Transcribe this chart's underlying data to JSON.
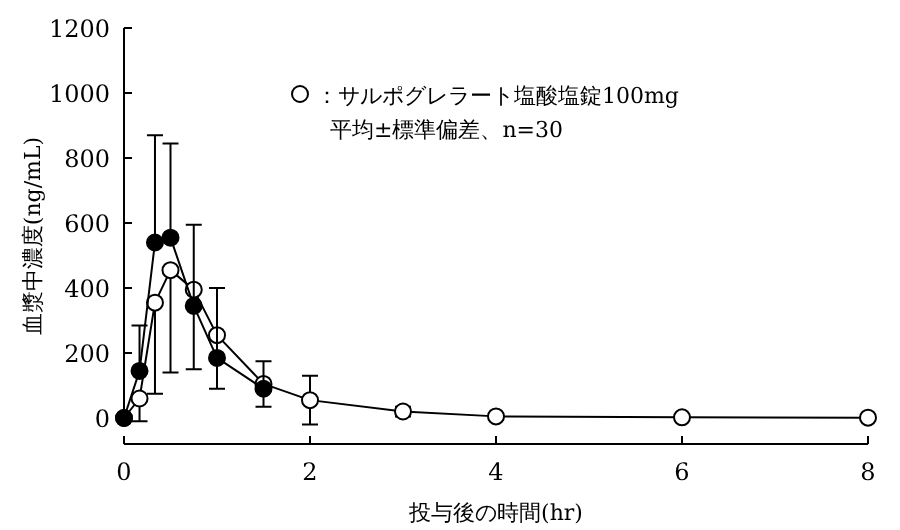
{
  "chart_data": {
    "type": "line",
    "xlabel": "投与後の時間(hr)",
    "ylabel": "血漿中濃度(ng/mL)",
    "xlim": [
      0,
      8
    ],
    "xticks": [
      0,
      2,
      4,
      6,
      8
    ],
    "ylim": [
      -80,
      1200
    ],
    "yticks": [
      0,
      200,
      400,
      600,
      800,
      1000,
      1200
    ],
    "marker": "circle",
    "legend": "top right",
    "grid": false,
    "annotations": [
      "平均±標準偏差、n=30"
    ],
    "series": [
      {
        "name": "：サルポグレラート塩酸塩錠100mg",
        "color": "#ffffff",
        "x": [
          0,
          0.167,
          0.333,
          0.5,
          0.75,
          1,
          1.5,
          2,
          3,
          4,
          6,
          8
        ],
        "values": [
          0,
          60,
          355,
          455,
          395,
          255,
          105,
          55,
          20,
          5,
          2,
          1
        ],
        "errors": [
          null,
          [
            -10,
            60
          ],
          [
            75,
            355
          ],
          [
            140,
            455
          ],
          [
            150,
            395
          ],
          [
            90,
            255
          ],
          [
            35,
            105
          ],
          [
            -20,
            130
          ],
          [
            5,
            35
          ],
          [
            -5,
            10
          ],
          null,
          null
        ]
      },
      {
        "color": "#000000",
        "x": [
          0,
          0.167,
          0.333,
          0.5,
          0.75,
          1,
          1.5
        ],
        "values": [
          0,
          145,
          540,
          555,
          345,
          185,
          90
        ],
        "errors": [
          null,
          [
            145,
            285
          ],
          [
            540,
            870
          ],
          [
            555,
            845
          ],
          [
            345,
            595
          ],
          [
            185,
            400
          ],
          [
            90,
            175
          ]
        ]
      }
    ]
  }
}
